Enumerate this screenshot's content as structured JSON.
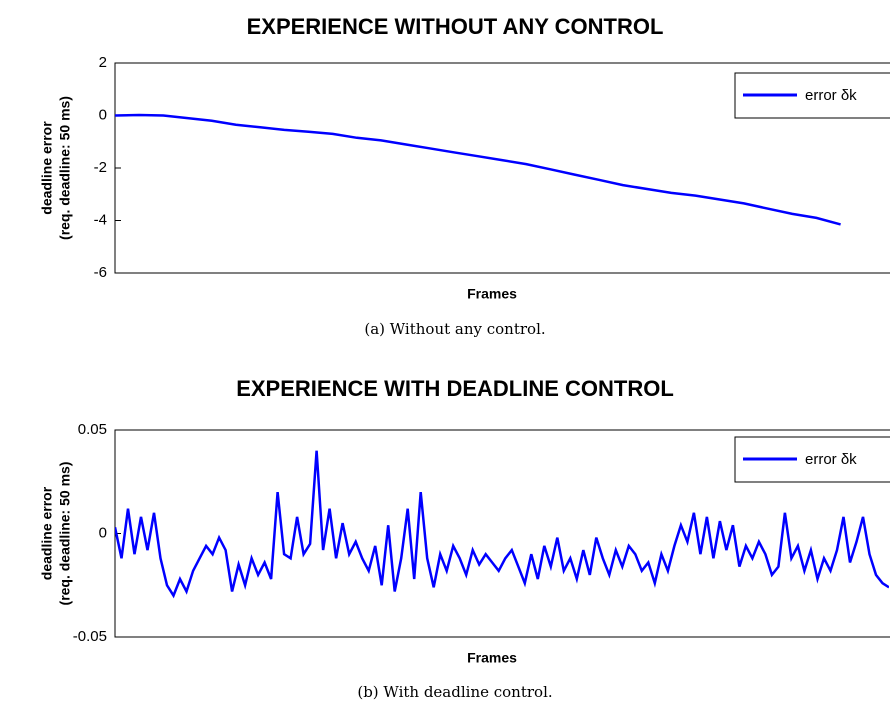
{
  "chart_data": [
    {
      "type": "line",
      "title": "EXPERIENCE WITHOUT ANY CONTROL",
      "ylabel": [
        "deadline error",
        "(req. deadline: 50 ms)"
      ],
      "xlabel": "Frames",
      "caption": "(a) Without any control.",
      "legend": "upper right",
      "series": [
        {
          "name": "error δk",
          "color": "#0000ff",
          "values": [
            0,
            0.02,
            0,
            -0.1,
            -0.2,
            -0.35,
            -0.45,
            -0.55,
            -0.62,
            -0.7,
            -0.85,
            -0.95,
            -1.1,
            -1.25,
            -1.4,
            -1.55,
            -1.7,
            -1.85,
            -2.05,
            -2.25,
            -2.45,
            -2.65,
            -2.8,
            -2.95,
            -3.05,
            -3.2,
            -3.35,
            -3.55,
            -3.75,
            -3.9,
            -4.15
          ]
        }
      ],
      "xlim": [
        0,
        32
      ],
      "ylim": [
        -6,
        2
      ],
      "yticks": [
        2,
        0,
        -2,
        -4,
        -6
      ]
    },
    {
      "type": "line",
      "title": "EXPERIENCE WITH DEADLINE CONTROL",
      "ylabel": [
        "deadline error",
        "(req. deadline: 50 ms)"
      ],
      "xlabel": "Frames",
      "caption": "(b) With deadline control.",
      "legend": "upper right",
      "series": [
        {
          "name": "error δk",
          "color": "#0000ff",
          "values": [
            0.003,
            -0.012,
            0.012,
            -0.01,
            0.008,
            -0.008,
            0.01,
            -0.012,
            -0.025,
            -0.03,
            -0.022,
            -0.028,
            -0.018,
            -0.012,
            -0.006,
            -0.01,
            -0.002,
            -0.008,
            -0.028,
            -0.015,
            -0.025,
            -0.012,
            -0.02,
            -0.014,
            -0.022,
            0.02,
            -0.01,
            -0.012,
            0.008,
            -0.01,
            -0.005,
            0.04,
            -0.008,
            0.012,
            -0.012,
            0.005,
            -0.01,
            -0.004,
            -0.012,
            -0.018,
            -0.006,
            -0.025,
            0.004,
            -0.028,
            -0.012,
            0.012,
            -0.022,
            0.02,
            -0.012,
            -0.026,
            -0.01,
            -0.018,
            -0.006,
            -0.012,
            -0.02,
            -0.008,
            -0.015,
            -0.01,
            -0.014,
            -0.018,
            -0.012,
            -0.008,
            -0.016,
            -0.024,
            -0.01,
            -0.022,
            -0.006,
            -0.016,
            -0.002,
            -0.018,
            -0.012,
            -0.022,
            -0.008,
            -0.02,
            -0.002,
            -0.012,
            -0.02,
            -0.008,
            -0.016,
            -0.006,
            -0.01,
            -0.018,
            -0.014,
            -0.024,
            -0.01,
            -0.018,
            -0.006,
            0.004,
            -0.004,
            0.01,
            -0.01,
            0.008,
            -0.012,
            0.006,
            -0.008,
            0.004,
            -0.016,
            -0.006,
            -0.012,
            -0.004,
            -0.01,
            -0.02,
            -0.016,
            0.01,
            -0.012,
            -0.006,
            -0.018,
            -0.008,
            -0.022,
            -0.012,
            -0.018,
            -0.008,
            0.008,
            -0.014,
            -0.004,
            0.008,
            -0.01,
            -0.02,
            -0.024,
            -0.026
          ]
        }
      ],
      "xlim": [
        0,
        119
      ],
      "ylim": [
        -0.05,
        0.05
      ],
      "yticks": [
        0.05,
        0,
        -0.05
      ]
    }
  ]
}
